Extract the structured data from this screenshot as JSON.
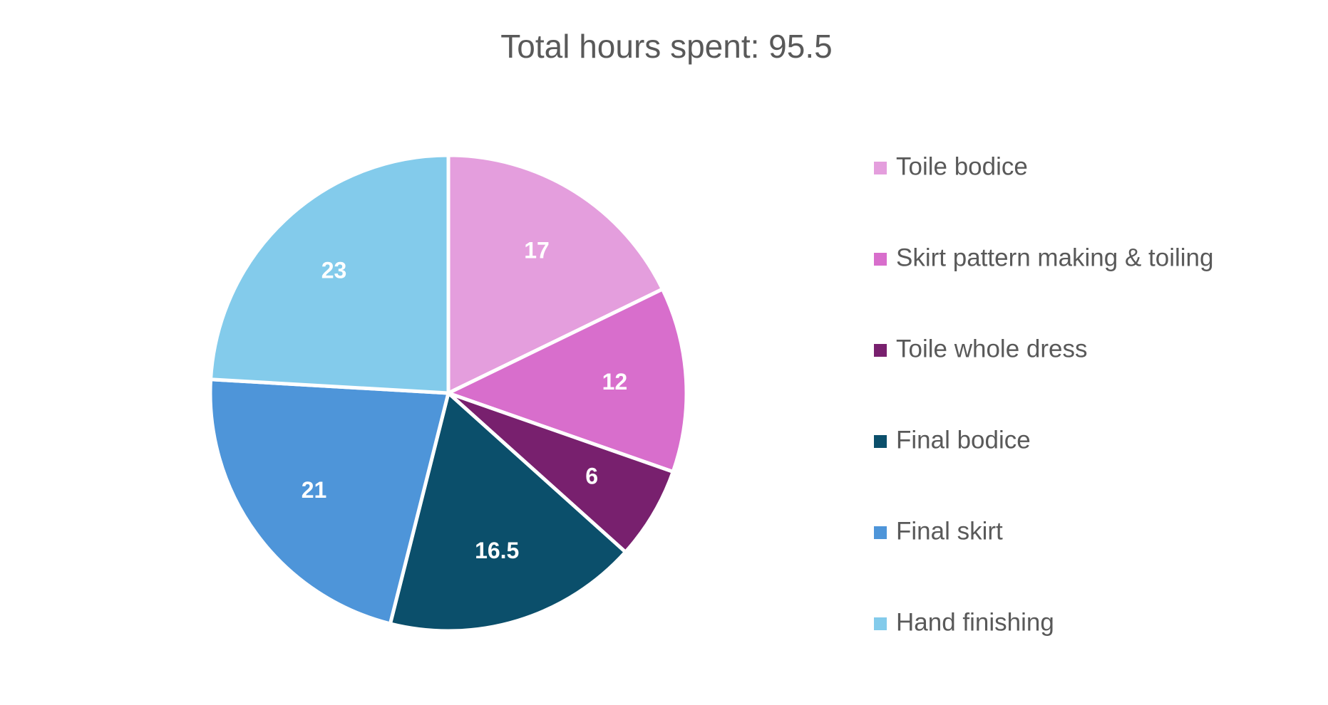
{
  "chart_data": {
    "type": "pie",
    "title": "Total hours spent: 95.5",
    "categories": [
      "Toile bodice",
      "Skirt pattern making & toiling",
      "Toile whole dress",
      "Final bodice",
      "Final skirt",
      "Hand finishing"
    ],
    "values": [
      17,
      12,
      6,
      16.5,
      21,
      23
    ],
    "colors": [
      "#e49edd",
      "#d86ecc",
      "#78206e",
      "#0b4f6b",
      "#4e95d9",
      "#83cbeb"
    ],
    "legend": "right"
  }
}
